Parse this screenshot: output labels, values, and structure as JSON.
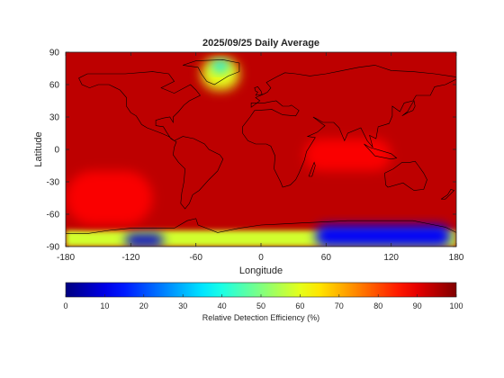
{
  "chart_data": {
    "type": "heatmap",
    "title": "2025/09/25 Daily Average",
    "xlabel": "Longitude",
    "ylabel": "Latitude",
    "xlim": [
      -180,
      180
    ],
    "ylim": [
      -90,
      90
    ],
    "xticks": [
      -180,
      -120,
      -60,
      0,
      60,
      120,
      180
    ],
    "yticks": [
      90,
      60,
      30,
      0,
      -30,
      -60,
      -90
    ],
    "colorbar": {
      "label": "Relative Detection Efficiency (%)",
      "range": [
        0,
        100
      ],
      "ticks": [
        0,
        10,
        20,
        30,
        40,
        50,
        60,
        70,
        80,
        90,
        100
      ],
      "colormap": "jet"
    },
    "field": {
      "background_value": 94,
      "regions": [
        {
          "name": "greenland-low",
          "lon": [
            -55,
            -20
          ],
          "lat": [
            55,
            85
          ],
          "value": 60
        },
        {
          "name": "greenland-core",
          "lon": [
            -45,
            -30
          ],
          "lat": [
            72,
            82
          ],
          "value": 35
        },
        {
          "name": "antarctic-east-low",
          "lon": [
            50,
            175
          ],
          "lat": [
            -90,
            -70
          ],
          "value": 12
        },
        {
          "name": "antarctic-west-low",
          "lon": [
            -125,
            -90
          ],
          "lat": [
            -90,
            -78
          ],
          "value": 8
        },
        {
          "name": "antarctic-coast-belt",
          "lon": [
            -180,
            180
          ],
          "lat": [
            -90,
            -75
          ],
          "value": 58
        },
        {
          "name": "south-pacific-high",
          "lon": [
            -180,
            -100
          ],
          "lat": [
            -70,
            -20
          ],
          "value": 88
        },
        {
          "name": "indian-ocean-high",
          "lon": [
            40,
            120
          ],
          "lat": [
            -20,
            10
          ],
          "value": 88
        }
      ]
    }
  }
}
